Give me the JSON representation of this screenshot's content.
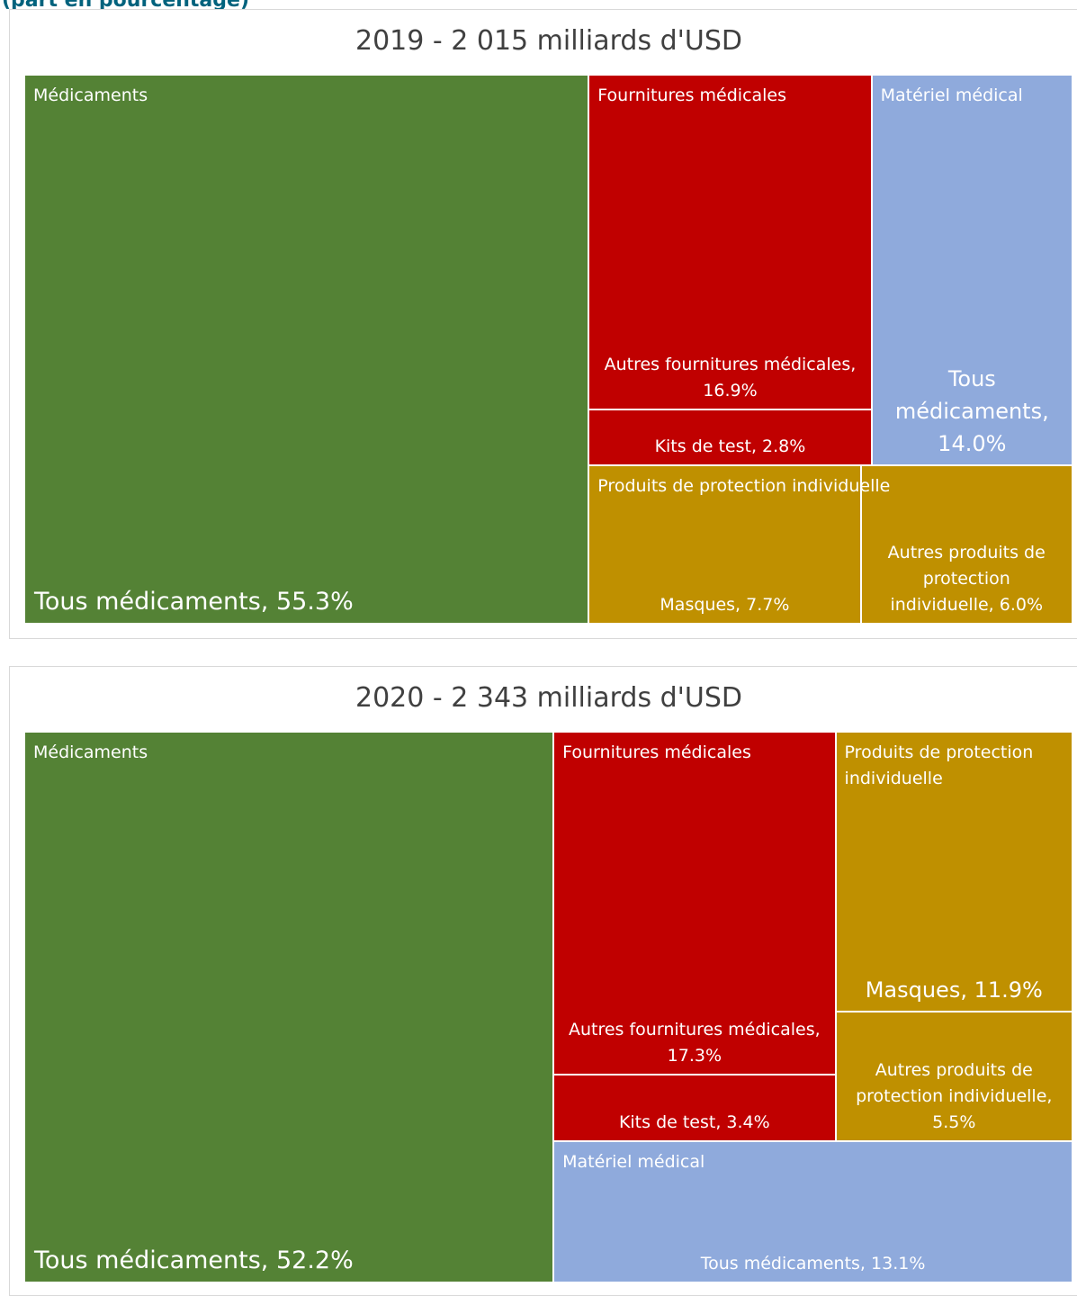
{
  "subtitle": "(part en pourcentage)",
  "chart_data": [
    {
      "type": "treemap",
      "title": "2019 - 2 015 milliards d'USD",
      "groups": [
        {
          "name": "Médicaments",
          "color": "#548235",
          "items": [
            {
              "label": "Tous médicaments, 55.3%",
              "value": 55.3
            }
          ]
        },
        {
          "name": "Fournitures médicales",
          "color": "#c00000",
          "items": [
            {
              "label": "Autres fournitures médicales, 16.9%",
              "value": 16.9
            },
            {
              "label": "Kits de test, 2.8%",
              "value": 2.8
            }
          ]
        },
        {
          "name": "Matériel médical",
          "color": "#8faadc",
          "items": [
            {
              "label": "Tous médicaments, 14.0%",
              "value": 14.0
            }
          ]
        },
        {
          "name": "Produits de protection individuelle",
          "color": "#bf9000",
          "items": [
            {
              "label": "Masques, 7.7%",
              "value": 7.7
            },
            {
              "label": "Autres produits de protection individuelle, 6.0%",
              "value": 6.0
            }
          ]
        }
      ]
    },
    {
      "type": "treemap",
      "title": "2020 - 2 343 milliards d'USD",
      "groups": [
        {
          "name": "Médicaments",
          "color": "#548235",
          "items": [
            {
              "label": "Tous médicaments, 52.2%",
              "value": 52.2
            }
          ]
        },
        {
          "name": "Fournitures médicales",
          "color": "#c00000",
          "items": [
            {
              "label": "Autres fournitures médicales, 17.3%",
              "value": 17.3
            },
            {
              "label": "Kits de test, 3.4%",
              "value": 3.4
            }
          ]
        },
        {
          "name": "Produits de protection individuelle",
          "color": "#bf9000",
          "items": [
            {
              "label": "Masques, 11.9%",
              "value": 11.9
            },
            {
              "label": "Autres produits de protection individuelle, 5.5%",
              "value": 5.5
            }
          ]
        },
        {
          "name": "Matériel médical",
          "color": "#8faadc",
          "items": [
            {
              "label": "Tous médicaments, 13.1%",
              "value": 13.1
            }
          ]
        }
      ]
    }
  ]
}
